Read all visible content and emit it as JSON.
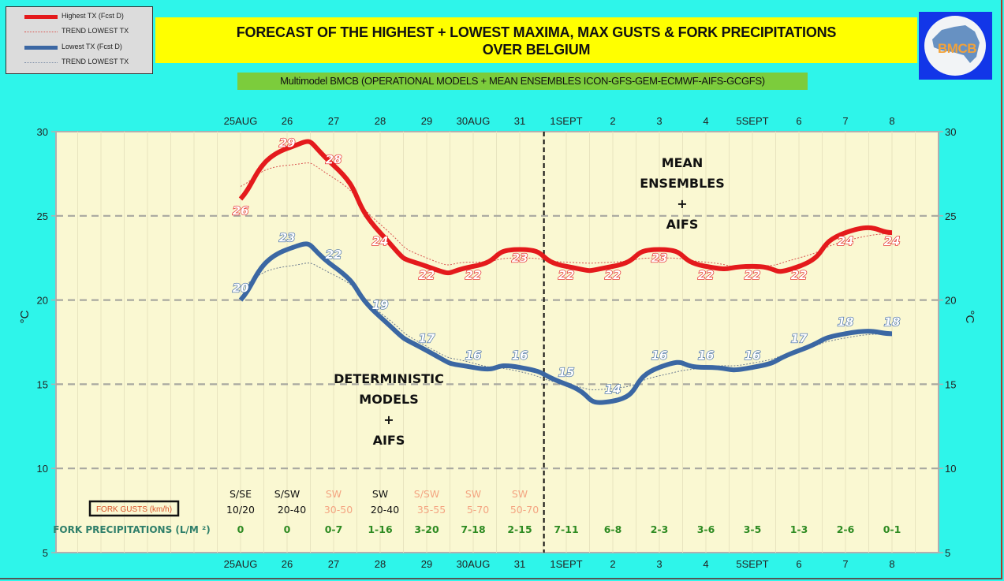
{
  "legend": {
    "items": [
      {
        "label": "Highest TX (Fcst D)",
        "style": "solid",
        "color": "#e41a1c"
      },
      {
        "label": "TREND LOWEST  TX",
        "style": "dotted",
        "color": "#d9534f"
      },
      {
        "label": "Lowest TX (Fcst D)",
        "style": "solid",
        "color": "#3b67a3"
      },
      {
        "label": "TREND LOWEST TX",
        "style": "dotted",
        "color": "#7f8fa8"
      }
    ]
  },
  "header": {
    "title_line1": "FORECAST OF THE HIGHEST + LOWEST MAXIMA, MAX GUSTS & FORK PRECIPITATIONS",
    "title_line2": "OVER BELGIUM",
    "subtitle": "Multimodel BMCB (OPERATIONAL MODELS + MEAN ENSEMBLES  ICON-GFS-GEM-ECMWF-AIFS-GCGFS)",
    "logo_text": "BMCB"
  },
  "colors": {
    "background": "#2ef5ea",
    "plot_bg": "#faf8d2",
    "title_bg": "#ffff00",
    "subtitle_bg": "#7ccc3c",
    "highest": "#e41a1c",
    "lowest": "#3b67a3",
    "gust_dark": "#111111",
    "gust_light": "#f4a582",
    "precip": "#2e8b22",
    "gust_label": "#d9532a"
  },
  "chart_data": {
    "type": "line",
    "title": "FORECAST OF THE HIGHEST + LOWEST MAXIMA, MAX GUSTS & FORK PRECIPITATIONS OVER BELGIUM",
    "categories": [
      "25AUG",
      "26",
      "27",
      "28",
      "29",
      "30AUG",
      "31",
      "1SEPT",
      "2",
      "3",
      "4",
      "5SEPT",
      "6",
      "7",
      "8"
    ],
    "ylabel": "°C",
    "ylabel_right": "°C",
    "ylim": [
      5,
      30
    ],
    "yticks": [
      5,
      10,
      15,
      20,
      25,
      30
    ],
    "grid": true,
    "legend_position": "top-left",
    "series": [
      {
        "name": "Highest TX (Fcst D)",
        "values": [
          26,
          29,
          28,
          24,
          22,
          22,
          23,
          22,
          22,
          23,
          22,
          22,
          22,
          24,
          24
        ]
      },
      {
        "name": "Lowest TX (Fcst D)",
        "values": [
          20,
          23,
          22,
          19,
          17,
          16,
          16,
          15,
          14,
          16,
          16,
          16,
          17,
          18,
          18
        ]
      }
    ],
    "annotations": {
      "divider_after": "31",
      "left_label": [
        "DETERMINISTIC",
        "MODELS",
        "+",
        "AIFS"
      ],
      "right_label": [
        "MEAN",
        "ENSEMBLES",
        "+",
        "AIFS"
      ]
    },
    "gusts": {
      "label": "FORK GUSTS (km/h)",
      "items": [
        {
          "dir": "S/SE",
          "range": "10/20",
          "highlight": false
        },
        {
          "dir": "S/SW",
          "range": "20-40",
          "highlight": false
        },
        {
          "dir": "SW",
          "range": "30-50",
          "highlight": true
        },
        {
          "dir": "SW",
          "range": "20-40",
          "highlight": false
        },
        {
          "dir": "S/SW",
          "range": "35-55",
          "highlight": true
        },
        {
          "dir": "SW",
          "range": "5-70",
          "highlight": true
        },
        {
          "dir": "SW",
          "range": "50-70",
          "highlight": true
        }
      ]
    },
    "precipitation": {
      "label": "FORK PRECIPITATIONS (L/M ²)",
      "values": [
        "0",
        "0",
        "0-7",
        "1-16",
        "3-20",
        "7-18",
        "2-15",
        "7-11",
        "6-8",
        "2-3",
        "3-6",
        "3-5",
        "1-3",
        "2-6",
        "0-1"
      ]
    }
  }
}
